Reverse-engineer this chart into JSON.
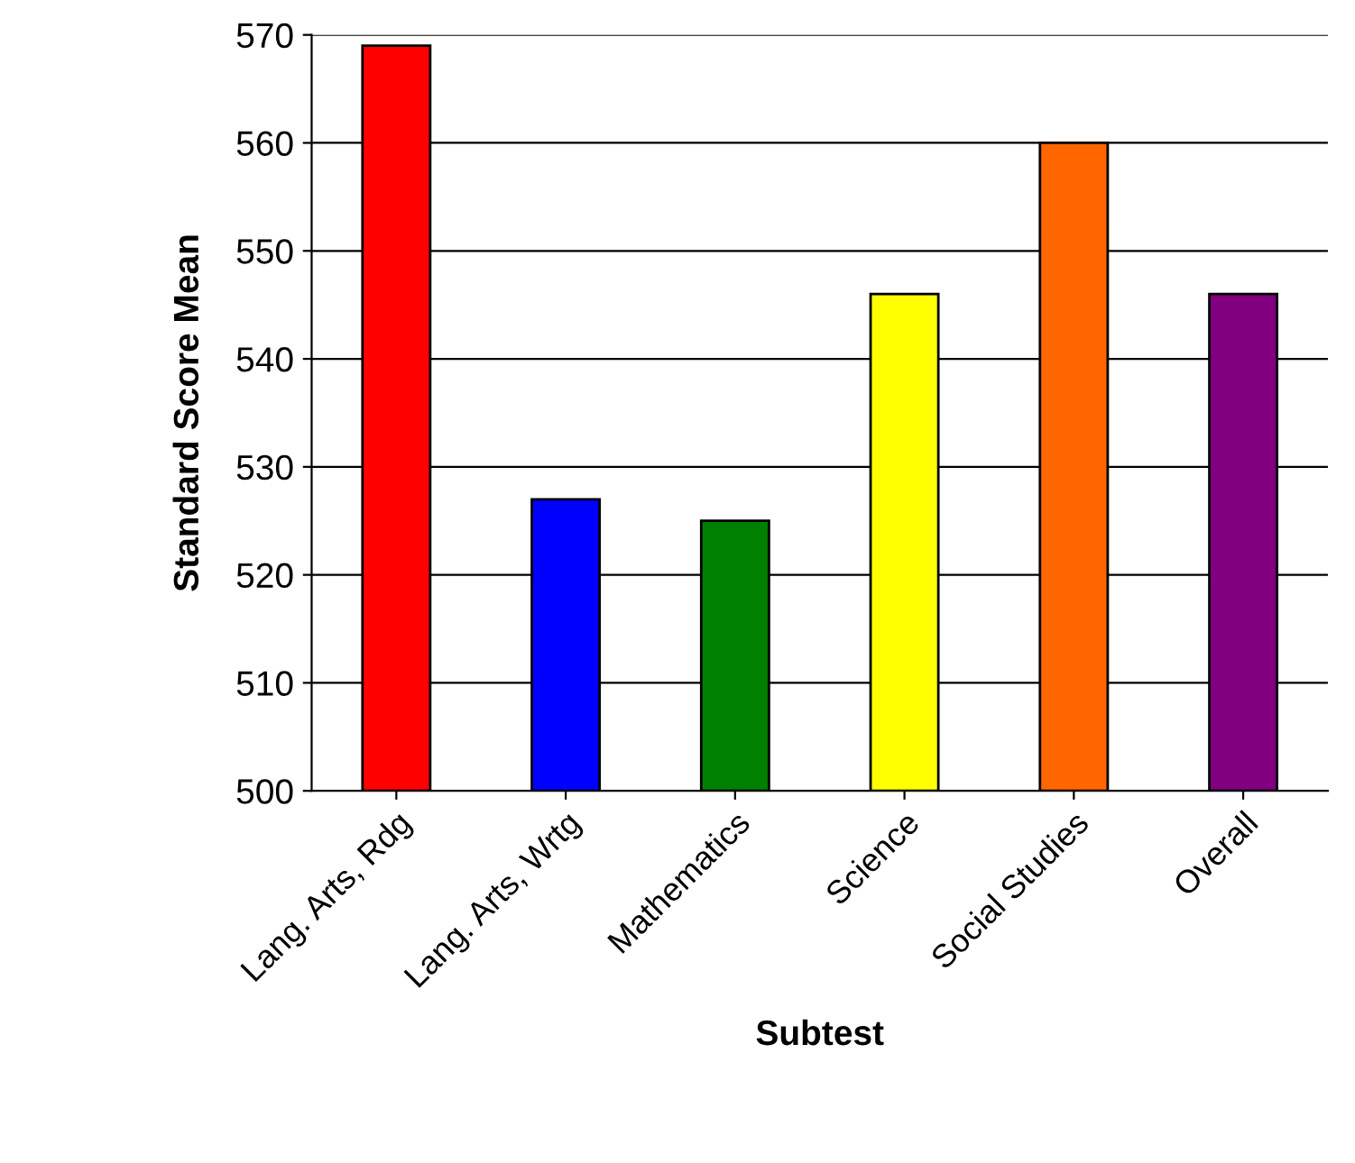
{
  "chart_data": {
    "type": "bar",
    "xlabel": "Subtest",
    "ylabel": "Standard Score Mean",
    "categories": [
      "Lang. Arts, Rdg",
      "Lang. Arts, Wrtg",
      "Mathematics",
      "Science",
      "Social Studies",
      "Overall"
    ],
    "values": [
      569,
      527,
      525,
      546,
      560,
      546
    ],
    "colors": [
      "#ff0000",
      "#0000ff",
      "#008000",
      "#ffff00",
      "#ff6600",
      "#800080"
    ],
    "ylim": [
      500,
      570
    ],
    "yticks": [
      500,
      510,
      520,
      530,
      540,
      550,
      560,
      570
    ],
    "grid": "y",
    "legend": false
  }
}
